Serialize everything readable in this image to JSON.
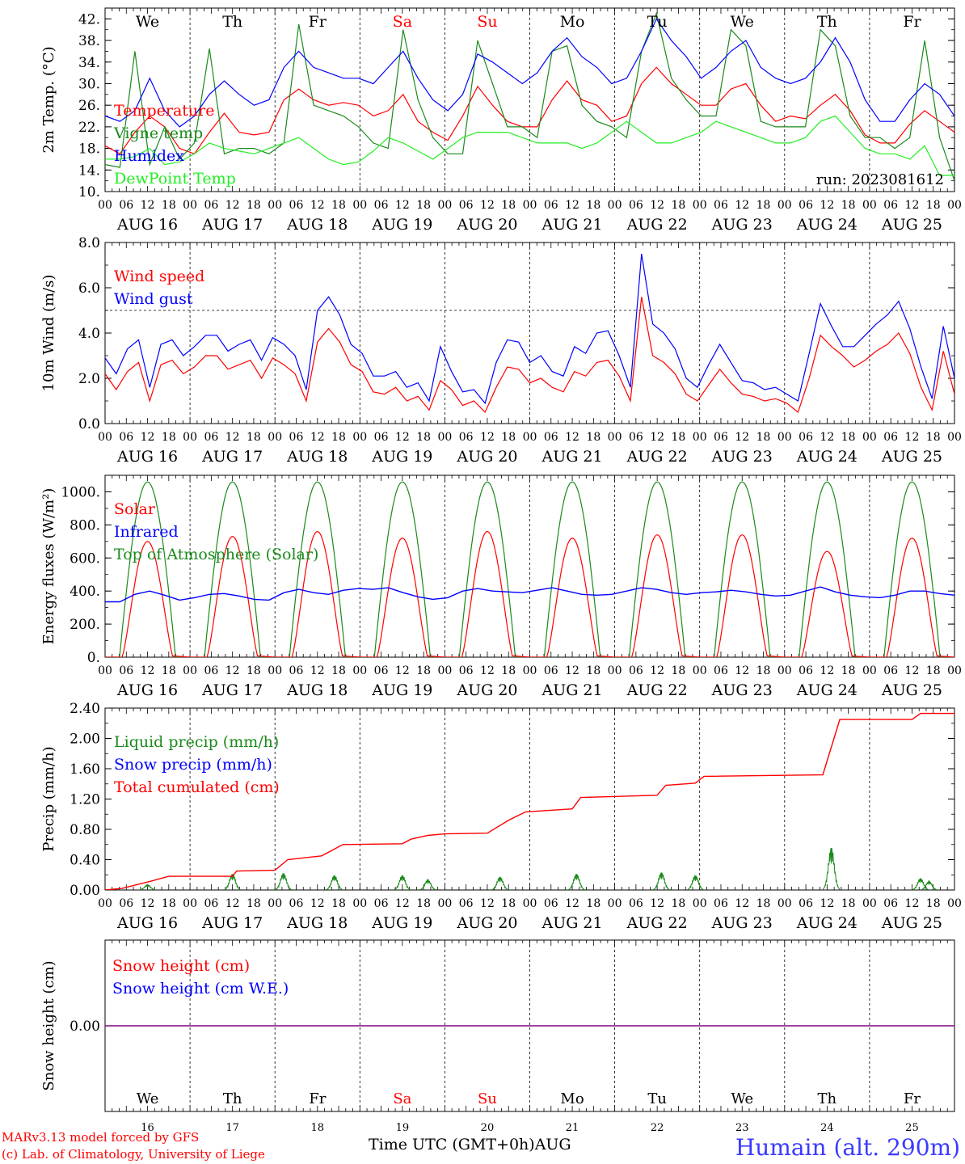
{
  "colors": {
    "red": "#ff0000",
    "darkgreen": "#1a8a1a",
    "blue": "#0000ff",
    "lightgreen": "#22ee22",
    "purple": "#800080",
    "weekend": "#ff0000"
  },
  "days": [
    {
      "dow": "We",
      "num": "16",
      "date": "AUG 16",
      "weekend": false
    },
    {
      "dow": "Th",
      "num": "17",
      "date": "AUG 17",
      "weekend": false
    },
    {
      "dow": "Fr",
      "num": "18",
      "date": "AUG 18",
      "weekend": false
    },
    {
      "dow": "Sa",
      "num": "19",
      "date": "AUG 19",
      "weekend": true
    },
    {
      "dow": "Su",
      "num": "20",
      "date": "AUG 20",
      "weekend": true
    },
    {
      "dow": "Mo",
      "num": "21",
      "date": "AUG 21",
      "weekend": false
    },
    {
      "dow": "Tu",
      "num": "22",
      "date": "AUG 22",
      "weekend": false
    },
    {
      "dow": "We",
      "num": "23",
      "date": "AUG 23",
      "weekend": false
    },
    {
      "dow": "Th",
      "num": "24",
      "date": "AUG 24",
      "weekend": false
    },
    {
      "dow": "Fr",
      "num": "25",
      "date": "AUG 25",
      "weekend": false
    }
  ],
  "hour_labels": [
    "00",
    "06",
    "12",
    "18"
  ],
  "footer": {
    "credit1": "MARv3.13 model forced by GFS",
    "credit2": "(c) Lab. of Climatology, University of Liege",
    "xaxis": "Time UTC (GMT+0h)AUG",
    "station": "Humain (alt. 290m)"
  },
  "chart_data": [
    {
      "type": "line",
      "ylabel": "2m Temp. (°C)",
      "ylim": [
        10,
        44
      ],
      "ticks": [
        "10.",
        "14.",
        "18.",
        "22.",
        "26.",
        "30.",
        "34.",
        "38.",
        "42."
      ],
      "tick_values": [
        10,
        14,
        18,
        22,
        26,
        30,
        34,
        38,
        42
      ],
      "annotation": "run: 2023081612",
      "series": [
        {
          "name": "Temperature",
          "color": "red",
          "values": [
            18.5,
            17,
            21,
            24,
            22,
            18,
            17,
            21,
            24.5,
            21,
            20.5,
            21,
            27,
            29,
            27,
            26,
            26.5,
            26,
            24,
            25,
            28,
            23,
            21,
            19.5,
            24,
            29.5,
            26,
            23,
            22,
            22,
            27,
            30.5,
            27,
            26,
            23,
            24,
            30,
            33,
            30,
            28,
            26,
            26,
            29,
            30,
            26,
            23,
            24,
            23.5,
            26,
            28,
            25,
            20.5,
            19,
            19,
            22.5,
            25,
            23,
            21
          ]
        },
        {
          "name": "Vigne temp",
          "color": "darkgreen",
          "values": [
            15,
            14.5,
            36,
            15,
            22,
            16,
            19,
            36.5,
            17,
            18,
            18,
            17,
            19,
            41,
            26,
            25,
            24,
            22,
            19,
            18,
            40,
            27,
            20,
            17,
            17,
            38,
            30,
            22,
            22,
            20,
            36,
            37,
            26,
            23,
            22,
            20,
            36,
            43,
            31,
            27,
            24,
            24,
            40,
            37,
            23,
            22,
            22,
            22,
            40,
            37,
            24,
            20,
            20,
            18,
            20,
            38,
            20,
            12
          ]
        },
        {
          "name": "Humidex",
          "color": "blue",
          "values": [
            24,
            23,
            25,
            31,
            25,
            22,
            24,
            28,
            30.5,
            28,
            26,
            27,
            33,
            36,
            33,
            32,
            31,
            31,
            30,
            33,
            36,
            31,
            27,
            25,
            28,
            35.5,
            34,
            32,
            30,
            32,
            36,
            38.5,
            35,
            33,
            30,
            31,
            36,
            42,
            38,
            35,
            31,
            33,
            36,
            38,
            33,
            31,
            30,
            31,
            34,
            38.5,
            34,
            27,
            23,
            23,
            27,
            30,
            28,
            24
          ]
        },
        {
          "name": "DewPoint Temp",
          "color": "lightgreen",
          "values": [
            16,
            16,
            16.5,
            18,
            15,
            15.5,
            17,
            19,
            18,
            17.5,
            17,
            18,
            19,
            20,
            18,
            16,
            15,
            15.5,
            17.5,
            20,
            19,
            17.5,
            16,
            18,
            20,
            21,
            21,
            21,
            20,
            19,
            19,
            19,
            18,
            19,
            21,
            23,
            21,
            19,
            19,
            20,
            21,
            23,
            22,
            21,
            20,
            19,
            19,
            20,
            23,
            24,
            21,
            18,
            17,
            17,
            16,
            18.5,
            13,
            13
          ]
        }
      ]
    },
    {
      "type": "line",
      "ylabel": "10m Wind (m/s)",
      "ylim": [
        0,
        8
      ],
      "ticks": [
        "0.0",
        "2.0",
        "4.0",
        "6.0",
        "8.0"
      ],
      "tick_values": [
        0,
        2,
        4,
        6,
        8
      ],
      "ref_line": 5,
      "series": [
        {
          "name": "Wind speed",
          "color": "red",
          "values": [
            2.2,
            1.5,
            2.3,
            2.7,
            1.0,
            2.6,
            2.8,
            2.2,
            2.5,
            3.0,
            3.0,
            2.4,
            2.6,
            2.8,
            2.0,
            2.9,
            2.6,
            2.2,
            1.0,
            3.6,
            4.2,
            3.6,
            2.6,
            2.3,
            1.4,
            1.3,
            1.6,
            1.0,
            1.2,
            0.6,
            1.9,
            1.5,
            0.8,
            1.0,
            0.5,
            1.6,
            2.5,
            2.4,
            1.8,
            2.0,
            1.6,
            1.4,
            2.3,
            2.1,
            2.7,
            2.8,
            2.1,
            1.0,
            5.6,
            3.0,
            2.7,
            2.2,
            1.3,
            1.0,
            1.7,
            2.4,
            1.8,
            1.3,
            1.2,
            1.0,
            1.1,
            0.9,
            0.5,
            2.0,
            3.9,
            3.4,
            3.0,
            2.5,
            2.8,
            3.2,
            3.5,
            4.0,
            3.1,
            1.6,
            0.6,
            3.2,
            1.3
          ]
        },
        {
          "name": "Wind gust",
          "color": "blue",
          "values": [
            2.9,
            2.2,
            3.3,
            3.7,
            1.6,
            3.5,
            3.7,
            3.0,
            3.4,
            3.9,
            3.9,
            3.2,
            3.5,
            3.7,
            2.8,
            3.8,
            3.5,
            3.0,
            1.5,
            5.0,
            5.6,
            4.8,
            3.5,
            3.1,
            2.1,
            2.1,
            2.3,
            1.6,
            1.8,
            1.0,
            3.4,
            2.3,
            1.4,
            1.5,
            0.9,
            2.7,
            3.7,
            3.6,
            2.7,
            3.0,
            2.3,
            2.1,
            3.4,
            3.1,
            4.0,
            4.1,
            3.0,
            1.6,
            7.5,
            4.4,
            4.0,
            3.3,
            2.0,
            1.6,
            2.6,
            3.5,
            2.7,
            1.9,
            1.8,
            1.5,
            1.6,
            1.3,
            1.0,
            3.1,
            5.3,
            4.3,
            3.4,
            3.4,
            3.9,
            4.4,
            4.8,
            5.4,
            4.2,
            2.5,
            1.1,
            4.3,
            2.0
          ]
        }
      ]
    },
    {
      "type": "line",
      "ylabel": "Energy fluxes (W/m²)",
      "ylim": [
        0,
        1100
      ],
      "ticks": [
        "0.",
        "200.",
        "400.",
        "600.",
        "800.",
        "1000."
      ],
      "tick_values": [
        0,
        200,
        400,
        600,
        800,
        1000
      ],
      "series": [
        {
          "name": "Solar",
          "color": "red",
          "peaks": [
            700,
            730,
            760,
            720,
            760,
            720,
            740,
            740,
            640,
            720
          ]
        },
        {
          "name": "Infrared",
          "color": "blue",
          "values": [
            335,
            335,
            380,
            400,
            375,
            345,
            360,
            380,
            385,
            370,
            350,
            345,
            390,
            410,
            390,
            380,
            405,
            415,
            410,
            420,
            390,
            365,
            350,
            360,
            400,
            415,
            400,
            395,
            390,
            405,
            420,
            400,
            380,
            375,
            380,
            400,
            420,
            410,
            390,
            380,
            390,
            395,
            405,
            395,
            380,
            370,
            375,
            400,
            425,
            395,
            375,
            365,
            360,
            375,
            400,
            400,
            385,
            375
          ]
        },
        {
          "name": "Top of Atmosphere (Solar)",
          "color": "darkgreen",
          "peak": 1060
        }
      ]
    },
    {
      "type": "line",
      "ylabel": "Precip (mm/h)",
      "ylim": [
        0,
        2.4
      ],
      "ticks": [
        "0.00",
        "0.40",
        "0.80",
        "1.20",
        "1.60",
        "2.00",
        "2.40"
      ],
      "tick_values": [
        0,
        0.4,
        0.8,
        1.2,
        1.6,
        2,
        2.4
      ],
      "series": [
        {
          "name": "Liquid precip (mm/h)",
          "color": "darkgreen",
          "bursts": [
            [
              0.5,
              0.07
            ],
            [
              1.5,
              0.22
            ],
            [
              2.1,
              0.23
            ],
            [
              2.7,
              0.2
            ],
            [
              3.5,
              0.2
            ],
            [
              3.8,
              0.14
            ],
            [
              4.65,
              0.18
            ],
            [
              5.55,
              0.22
            ],
            [
              6.55,
              0.24
            ],
            [
              6.95,
              0.2
            ],
            [
              8.55,
              0.58
            ],
            [
              9.6,
              0.16
            ],
            [
              9.7,
              0.12
            ]
          ]
        },
        {
          "name": "Snow precip (mm/h)",
          "color": "blue",
          "values": []
        },
        {
          "name": "Total cumulated (cm)",
          "color": "red",
          "steps": [
            [
              0,
              0
            ],
            [
              0.2,
              0.02
            ],
            [
              0.55,
              0.12
            ],
            [
              0.75,
              0.18
            ],
            [
              1.5,
              0.18
            ],
            [
              1.55,
              0.25
            ],
            [
              2.0,
              0.26
            ],
            [
              2.15,
              0.4
            ],
            [
              2.55,
              0.45
            ],
            [
              2.8,
              0.6
            ],
            [
              3.5,
              0.61
            ],
            [
              3.6,
              0.67
            ],
            [
              3.8,
              0.72
            ],
            [
              4.0,
              0.74
            ],
            [
              4.5,
              0.75
            ],
            [
              4.75,
              0.92
            ],
            [
              4.95,
              1.03
            ],
            [
              5.5,
              1.07
            ],
            [
              5.6,
              1.22
            ],
            [
              6.5,
              1.25
            ],
            [
              6.6,
              1.38
            ],
            [
              6.95,
              1.41
            ],
            [
              7.05,
              1.5
            ],
            [
              8.45,
              1.52
            ],
            [
              8.65,
              2.25
            ],
            [
              9.5,
              2.25
            ],
            [
              9.6,
              2.33
            ],
            [
              10.0,
              2.33
            ]
          ]
        }
      ]
    },
    {
      "type": "line",
      "ylabel": "Snow height (cm)",
      "ylim": [
        -1,
        1
      ],
      "ticks": [
        "0.00"
      ],
      "tick_values": [
        0
      ],
      "series": [
        {
          "name": "Snow height (cm)",
          "color": "red",
          "values": [
            0,
            0
          ]
        },
        {
          "name": "Snow height (cm W.E.)",
          "color": "blue",
          "values": [
            0,
            0
          ]
        }
      ]
    }
  ]
}
